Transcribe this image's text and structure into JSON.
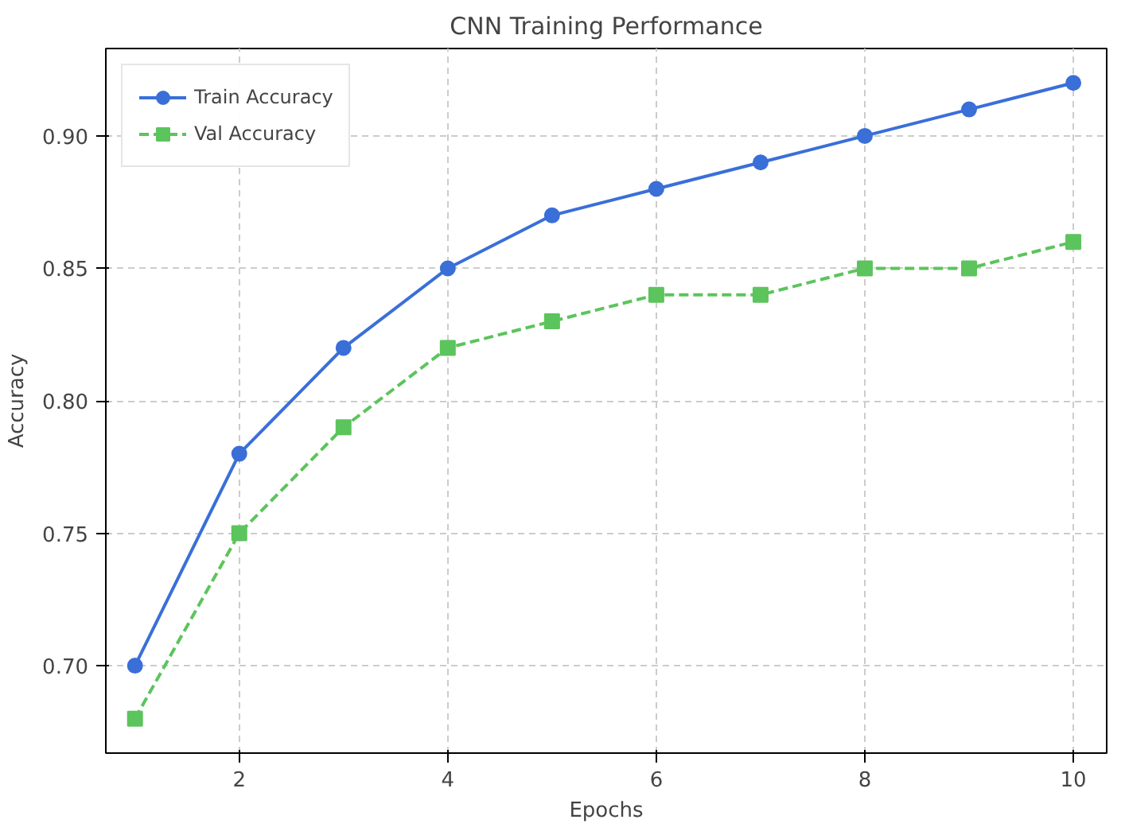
{
  "chart_data": {
    "type": "line",
    "title": "CNN Training Performance",
    "xlabel": "Epochs",
    "ylabel": "Accuracy",
    "x": [
      1,
      2,
      3,
      4,
      5,
      6,
      7,
      8,
      9,
      10
    ],
    "series": [
      {
        "name": "Train Accuracy",
        "color": "#3a6fd8",
        "marker": "circle",
        "line_style": "solid",
        "values": [
          0.7,
          0.78,
          0.82,
          0.85,
          0.87,
          0.88,
          0.89,
          0.9,
          0.91,
          0.92
        ]
      },
      {
        "name": "Val Accuracy",
        "color": "#5cc45c",
        "marker": "square",
        "line_style": "dashed",
        "values": [
          0.68,
          0.75,
          0.79,
          0.82,
          0.83,
          0.84,
          0.84,
          0.85,
          0.85,
          0.86
        ]
      }
    ],
    "xlim": [
      0.72,
      10.32
    ],
    "ylim": [
      0.667,
      0.933
    ],
    "xticks": [
      2,
      4,
      6,
      8,
      10
    ],
    "yticks": [
      {
        "value": 0.7,
        "label": "0.70"
      },
      {
        "value": 0.75,
        "label": "0.75"
      },
      {
        "value": 0.8,
        "label": "0.80"
      },
      {
        "value": 0.85,
        "label": "0.85"
      },
      {
        "value": 0.9,
        "label": "0.90"
      }
    ],
    "grid": true,
    "legend": "top left"
  }
}
